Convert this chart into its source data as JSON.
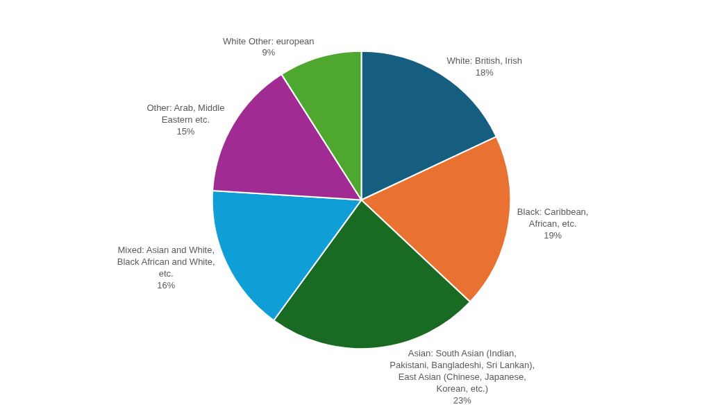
{
  "chart_data": {
    "type": "pie",
    "categories": [
      "White: British, Irish",
      "Black: Caribbean, African, etc.",
      "Asian: South Asian (Indian, Pakistani, Bangladeshi, Sri Lankan), East Asian (Chinese, Japanese, Korean, etc.)",
      "Mixed: Asian and White, Black African and White, etc.",
      "Other: Arab, Middle Eastern etc.",
      "White Other: european"
    ],
    "values": [
      18,
      19,
      23,
      16,
      15,
      9
    ],
    "value_labels": [
      "18%",
      "19%",
      "23%",
      "16%",
      "15%",
      "9%"
    ],
    "colors": [
      "#155e80",
      "#e97132",
      "#196b24",
      "#0f9ed5",
      "#a02b93",
      "#4ea72e"
    ],
    "legend": false
  }
}
